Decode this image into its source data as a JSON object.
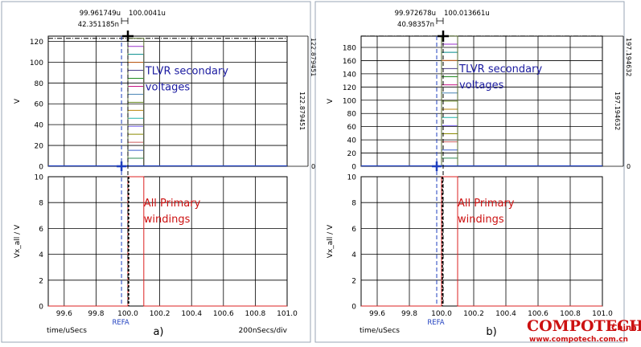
{
  "brand": {
    "name_main": "COMPOTECH",
    "name_sub": "China",
    "url": "www.compotech.com.cn",
    "color": "#cc1111"
  },
  "chart_data": [
    {
      "type": "line",
      "panel_label": "a)",
      "cursor1_time": "99.961749u",
      "cursor2_time": "100.0041u",
      "cursor_delta": "42.351185n",
      "x_axis_title": "time/uSecs",
      "x_div_label": "200nSecs/div",
      "ref_label": "REFA",
      "x_ticks": [
        "99.6",
        "99.8",
        "100.0",
        "100.2",
        "100.4",
        "100.6",
        "100.8",
        "101.0"
      ],
      "xlim": [
        99.5,
        101.0
      ],
      "cursor1_x": 99.96,
      "cursor2_x": 100.0,
      "top": {
        "ylabel": "V",
        "ylim": [
          0,
          125
        ],
        "yticks": [
          "0",
          "20",
          "40",
          "60",
          "80",
          "100",
          "120"
        ],
        "ytick_values": [
          0,
          20,
          40,
          60,
          80,
          100,
          120
        ],
        "right_top_label": "122.879451",
        "right_mid_label": "122.879451",
        "right_zero_label": "0",
        "annotation": "TLVR secondary\nvoltages",
        "annotation_color": "#1a1aa0",
        "pulse_start": 100.0,
        "pulse_end": 100.1,
        "pulse_max": 122.88,
        "step_count": 16
      },
      "bottom": {
        "ylabel": "Vx_all / V",
        "ylim": [
          0,
          10
        ],
        "yticks": [
          "0",
          "2",
          "4",
          "6",
          "8",
          "10"
        ],
        "ytick_values": [
          0,
          2,
          4,
          6,
          8,
          10
        ],
        "annotation": "All Primary\nwindings",
        "annotation_color": "#cc1111",
        "pulse_start": 100.0,
        "pulse_end": 100.1,
        "pulse_level": 10
      }
    },
    {
      "type": "line",
      "panel_label": "b)",
      "cursor1_time": "99.972678u",
      "cursor2_time": "100.013661u",
      "cursor_delta": "40.98357n",
      "x_axis_title": "time/uSecs",
      "ref_label": "REFA",
      "x_ticks": [
        "99.6",
        "99.8",
        "100.0",
        "100.2",
        "100.4",
        "100.6",
        "100.8",
        "101.0"
      ],
      "xlim": [
        99.5,
        101.0
      ],
      "cursor1_x": 99.97,
      "cursor2_x": 100.01,
      "top": {
        "ylabel": "V",
        "ylim": [
          0,
          197
        ],
        "yticks": [
          "0",
          "20",
          "40",
          "60",
          "80",
          "100",
          "120",
          "140",
          "160",
          "180"
        ],
        "ytick_values": [
          0,
          20,
          40,
          60,
          80,
          100,
          120,
          140,
          160,
          180
        ],
        "right_top_label": "197.194632",
        "right_mid_label": "197.194632",
        "right_zero_label": "0",
        "annotation": "TLVR secondary\nvoltages",
        "annotation_color": "#1a1aa0",
        "pulse_start": 100.0,
        "pulse_end": 100.1,
        "pulse_max": 197.19,
        "step_count": 16
      },
      "bottom": {
        "ylabel": "Vx_all / V",
        "ylim": [
          0,
          10
        ],
        "yticks": [
          "0",
          "2",
          "4",
          "6",
          "8",
          "10"
        ],
        "ytick_values": [
          0,
          2,
          4,
          6,
          8,
          10
        ],
        "annotation": "All Primary\nwindings",
        "annotation_color": "#cc1111",
        "pulse_start": 100.0,
        "pulse_end": 100.1,
        "pulse_level": 10
      }
    }
  ]
}
